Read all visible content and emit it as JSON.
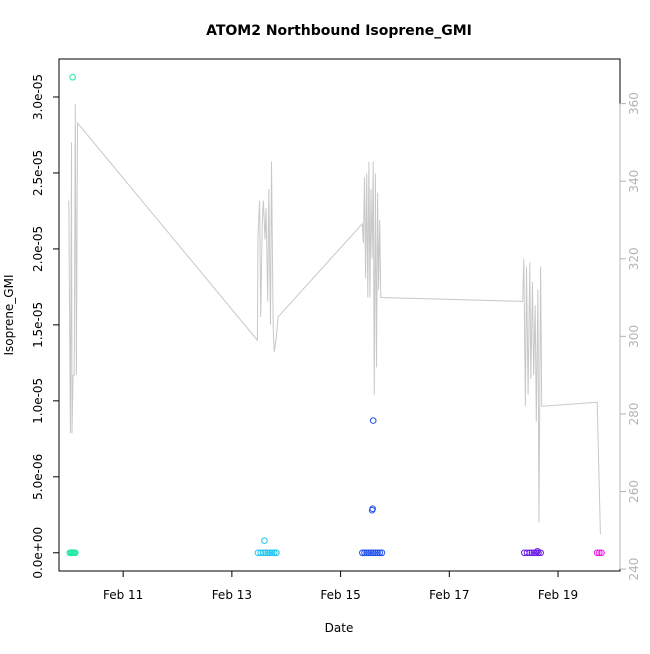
{
  "chart_data": {
    "type": "scatter",
    "title": "ATOM2 Northbound Isoprene_GMI",
    "xlabel": "Date",
    "ylabel": "Isoprene_GMI",
    "x_ticks": [
      "Feb 11",
      "Feb 13",
      "Feb 15",
      "Feb 17",
      "Feb 19"
    ],
    "x_tick_days": [
      11,
      13,
      15,
      17,
      19
    ],
    "xlim_days": [
      9.82,
      20.14
    ],
    "y_ticks": [
      "0.0e+00",
      "5.0e-06",
      "1.0e-05",
      "1.5e-05",
      "2.0e-05",
      "2.5e-05",
      "3.0e-05"
    ],
    "y_tick_values": [
      0,
      5e-06,
      1e-05,
      1.5e-05,
      2e-05,
      2.5e-05,
      3e-05
    ],
    "ylim": [
      -1.2e-06,
      3.25e-05
    ],
    "y2_ticks": [
      "240",
      "260",
      "280",
      "300",
      "320",
      "340",
      "360"
    ],
    "y2_tick_values": [
      240,
      260,
      280,
      300,
      320,
      340,
      360
    ],
    "y2lim": [
      239.5,
      371.5
    ],
    "grid": false,
    "legend": "none",
    "colors": {
      "series_line": "#c8c8c8",
      "right_axis_text": "#b4b4b4",
      "axis": "#000000"
    },
    "series": [
      {
        "kind": "points",
        "color": "#1ee8a6",
        "x": [
          10.02,
          10.04,
          10.06,
          10.08,
          10.1,
          10.12,
          10.07
        ],
        "y": [
          0.0,
          0.0,
          0.0,
          0.0,
          0.0,
          0.0,
          3.13e-05
        ]
      },
      {
        "kind": "points",
        "color": "#1fc6f0",
        "x": [
          13.48,
          13.53,
          13.58,
          13.62,
          13.66,
          13.7,
          13.74,
          13.78,
          13.82,
          13.6
        ],
        "y": [
          0.0,
          0.0,
          0.0,
          0.0,
          0.0,
          0.0,
          0.0,
          0.0,
          0.0,
          8e-07
        ]
      },
      {
        "kind": "points",
        "color": "#1f50ee",
        "x": [
          15.4,
          15.44,
          15.48,
          15.52,
          15.56,
          15.6,
          15.64,
          15.68,
          15.72,
          15.76,
          15.58,
          15.59,
          15.6
        ],
        "y": [
          0.0,
          0.0,
          0.0,
          0.0,
          0.0,
          0.0,
          0.0,
          0.0,
          0.0,
          0.0,
          2.8e-06,
          2.9e-06,
          8.7e-06
        ]
      },
      {
        "kind": "points",
        "color": "#6a1ee8",
        "x": [
          18.38,
          18.43,
          18.48,
          18.52,
          18.56,
          18.6,
          18.64,
          18.68,
          18.62
        ],
        "y": [
          0.0,
          0.0,
          0.0,
          0.0,
          0.0,
          0.0,
          0.0,
          0.0,
          1e-07
        ]
      },
      {
        "kind": "points",
        "color": "#e81ee0",
        "x": [
          19.72,
          19.76,
          19.8
        ],
        "y": [
          0.0,
          0.0,
          0.0
        ]
      },
      {
        "kind": "line",
        "axis": "right",
        "color": "#c8c8c8",
        "x": [
          10.0,
          10.03,
          10.05,
          10.06,
          10.08,
          10.1,
          10.12,
          10.14,
          10.16,
          13.47,
          13.48,
          13.51,
          13.53,
          13.56,
          13.58,
          13.61,
          13.63,
          13.66,
          13.68,
          13.71,
          13.73,
          13.76,
          13.78,
          13.82,
          13.85,
          15.4,
          15.42,
          15.44,
          15.46,
          15.48,
          15.5,
          15.52,
          15.54,
          15.56,
          15.58,
          15.6,
          15.62,
          15.64,
          15.66,
          15.68,
          15.7,
          15.72,
          15.74,
          18.35,
          18.37,
          18.4,
          18.42,
          18.45,
          18.48,
          18.5,
          18.53,
          18.55,
          18.58,
          18.6,
          18.63,
          18.65,
          18.68,
          18.7,
          19.72,
          19.78
        ],
        "y": [
          335,
          275,
          350,
          275,
          290,
          290,
          360,
          290,
          355,
          299,
          326,
          335,
          305,
          330,
          335,
          325,
          333,
          309,
          338,
          303,
          345,
          302,
          296,
          300,
          305,
          329,
          324,
          341,
          315,
          342,
          310,
          345,
          310,
          338,
          320,
          345,
          285,
          342,
          292,
          337,
          312,
          330,
          310,
          309,
          320,
          282,
          318,
          285,
          319,
          289,
          314,
          290,
          308,
          278,
          312,
          252,
          318,
          282,
          283,
          249
        ]
      }
    ]
  }
}
